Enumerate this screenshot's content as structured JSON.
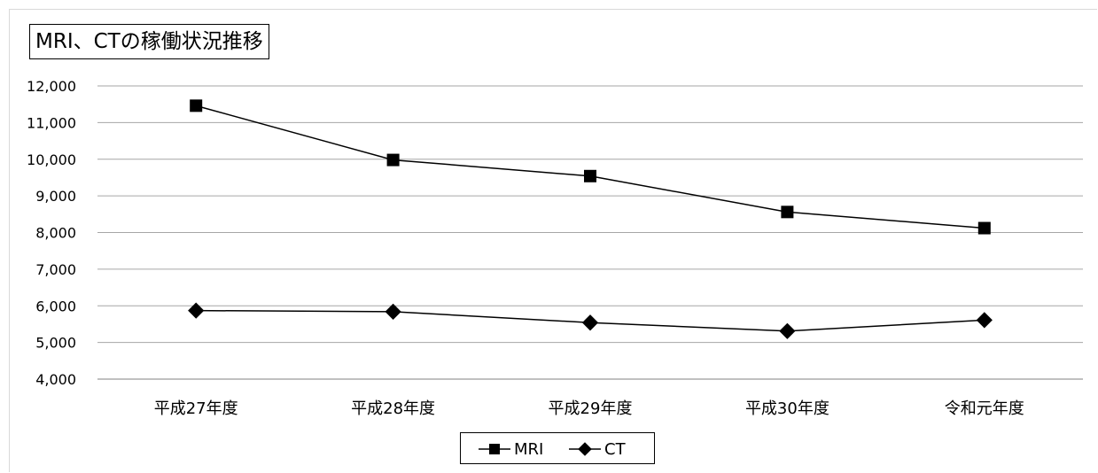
{
  "chart_data": {
    "type": "line",
    "title": "MRI、CTの稼働状況推移",
    "categories": [
      "平成27年度",
      "平成28年度",
      "平成29年度",
      "平成30年度",
      "令和元年度"
    ],
    "series": [
      {
        "name": "MRI",
        "values": [
          11460,
          9980,
          9540,
          8560,
          8120
        ],
        "marker": "square",
        "color": "#000000"
      },
      {
        "name": "CT",
        "values": [
          5870,
          5840,
          5540,
          5310,
          5610
        ],
        "marker": "diamond",
        "color": "#000000"
      }
    ],
    "yticks": [
      "4,000",
      "5,000",
      "6,000",
      "7,000",
      "8,000",
      "9,000",
      "10,000",
      "11,000",
      "12,000"
    ],
    "ylim": [
      4000,
      12000
    ],
    "grid": true,
    "legend_position": "bottom"
  }
}
